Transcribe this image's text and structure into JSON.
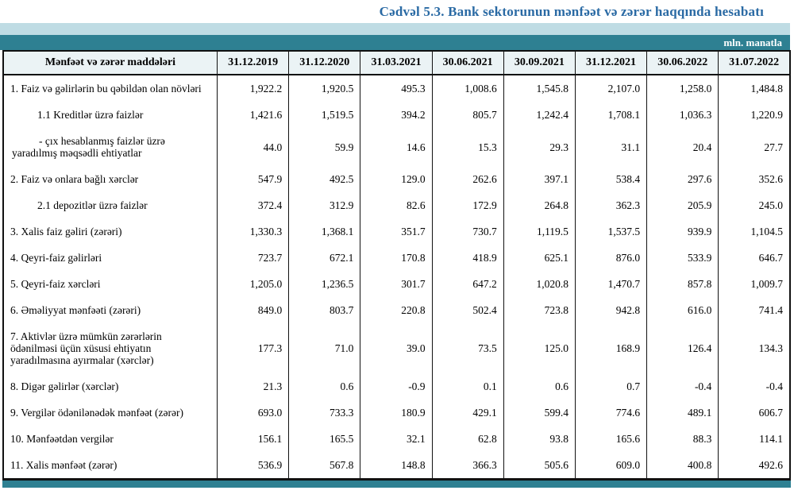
{
  "title": "Cədvəl 5.3. Bank sektorunun mənfəət və zərər haqqında hesabatı",
  "unit_label": "mln. manatla",
  "colors": {
    "title_blue": "#2a6aa4",
    "band_light": "#bfdce4",
    "band_teal": "#2e8092",
    "header_bg": "#ebf3f5",
    "border": "#111111"
  },
  "table": {
    "header": [
      "Mənfəət və zərər maddələri",
      "31.12.2019",
      "31.12.2020",
      "31.03.2021",
      "30.06.2021",
      "30.09.2021",
      "31.12.2021",
      "30.06.2022",
      "31.07.2022"
    ],
    "rows": [
      {
        "label": "1. Faiz və gəlirlərin bu qəbildən olan növləri",
        "indent": 0,
        "hanging": false,
        "values": [
          "1,922.2",
          "1,920.5",
          "495.3",
          "1,008.6",
          "1,545.8",
          "2,107.0",
          "1,258.0",
          "1,484.8"
        ]
      },
      {
        "label": "1.1 Kreditlər üzrə faizlər",
        "indent": 1,
        "hanging": false,
        "values": [
          "1,421.6",
          "1,519.5",
          "394.2",
          "805.7",
          "1,242.4",
          "1,708.1",
          "1,036.3",
          "1,220.9"
        ]
      },
      {
        "label": "-  çıx hesablanmış faizlər üzrə yaradılmış məqsədli ehtiyatlar",
        "indent": 0,
        "hanging": true,
        "values": [
          "44.0",
          "59.9",
          "14.6",
          "15.3",
          "29.3",
          "31.1",
          "20.4",
          "27.7"
        ]
      },
      {
        "label": "2. Faiz və onlara bağlı xərclər",
        "indent": 0,
        "hanging": false,
        "values": [
          "547.9",
          "492.5",
          "129.0",
          "262.6",
          "397.1",
          "538.4",
          "297.6",
          "352.6"
        ]
      },
      {
        "label": "2.1 depozitlər üzrə faizlər",
        "indent": 1,
        "hanging": false,
        "values": [
          "372.4",
          "312.9",
          "82.6",
          "172.9",
          "264.8",
          "362.3",
          "205.9",
          "245.0"
        ]
      },
      {
        "label": "3. Xalis faiz gəliri (zərəri)",
        "indent": 0,
        "hanging": false,
        "values": [
          "1,330.3",
          "1,368.1",
          "351.7",
          "730.7",
          "1,119.5",
          "1,537.5",
          "939.9",
          "1,104.5"
        ]
      },
      {
        "label": "4. Qeyri-faiz gəlirləri",
        "indent": 0,
        "hanging": false,
        "values": [
          "723.7",
          "672.1",
          "170.8",
          "418.9",
          "625.1",
          "876.0",
          "533.9",
          "646.7"
        ]
      },
      {
        "label": "5. Qeyri-faiz xərcləri",
        "indent": 0,
        "hanging": false,
        "values": [
          "1,205.0",
          "1,236.5",
          "301.7",
          "647.2",
          "1,020.8",
          "1,470.7",
          "857.8",
          "1,009.7"
        ]
      },
      {
        "label": "6. Əməliyyat mənfəəti (zərəri)",
        "indent": 0,
        "hanging": false,
        "values": [
          "849.0",
          "803.7",
          "220.8",
          "502.4",
          "723.8",
          "942.8",
          "616.0",
          "741.4"
        ]
      },
      {
        "label": "7. Aktivlər üzrə mümkün zərərlərin ödənilməsi üçün xüsusi ehtiyatın yaradılmasına ayırmalar (xərclər)",
        "indent": 0,
        "hanging": false,
        "values": [
          "177.3",
          "71.0",
          "39.0",
          "73.5",
          "125.0",
          "168.9",
          "126.4",
          "134.3"
        ]
      },
      {
        "label": "8. Digər gəlirlər (xərclər)",
        "indent": 0,
        "hanging": false,
        "values": [
          "21.3",
          "0.6",
          "-0.9",
          "0.1",
          "0.6",
          "0.7",
          "-0.4",
          "-0.4"
        ]
      },
      {
        "label": "9. Vergilər ödənilənədək mənfəət (zərər)",
        "indent": 0,
        "hanging": false,
        "values": [
          "693.0",
          "733.3",
          "180.9",
          "429.1",
          "599.4",
          "774.6",
          "489.1",
          "606.7"
        ]
      },
      {
        "label": "10. Mənfəətdən vergilər",
        "indent": 0,
        "hanging": false,
        "values": [
          "156.1",
          "165.5",
          "32.1",
          "62.8",
          "93.8",
          "165.6",
          "88.3",
          "114.1"
        ]
      },
      {
        "label": "11. Xalis mənfəət (zərər)",
        "indent": 0,
        "hanging": false,
        "values": [
          "536.9",
          "567.8",
          "148.8",
          "366.3",
          "505.6",
          "609.0",
          "400.8",
          "492.6"
        ]
      }
    ]
  }
}
